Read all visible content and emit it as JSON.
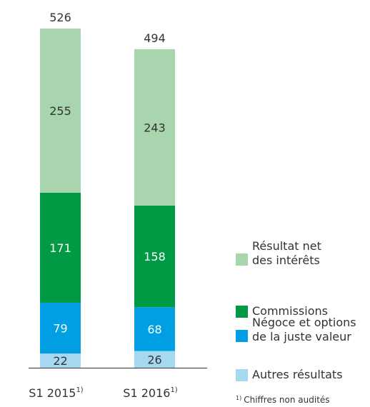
{
  "chart_data": {
    "type": "stacked_bar",
    "categories": [
      "S1 2015",
      "S1 2016"
    ],
    "category_note": "1)",
    "series": [
      {
        "name": "Autres résultats",
        "color": "#a6d8f2",
        "label_color": "#333333",
        "values": [
          22,
          26
        ]
      },
      {
        "name": "Négoce et options\nde la juste valeur",
        "color": "#009fe3",
        "label_color": "#ffffff",
        "values": [
          79,
          68
        ]
      },
      {
        "name": "Commissions",
        "color": "#009a44",
        "label_color": "#ffffff",
        "values": [
          171,
          158
        ]
      },
      {
        "name": "Résultat net\ndes intérêts",
        "color": "#a8d5ae",
        "label_color": "#333333",
        "values": [
          255,
          243
        ]
      }
    ],
    "totals": [
      526,
      494
    ],
    "footnote_marker": "1)",
    "footnote": "Chiffres non audités"
  }
}
